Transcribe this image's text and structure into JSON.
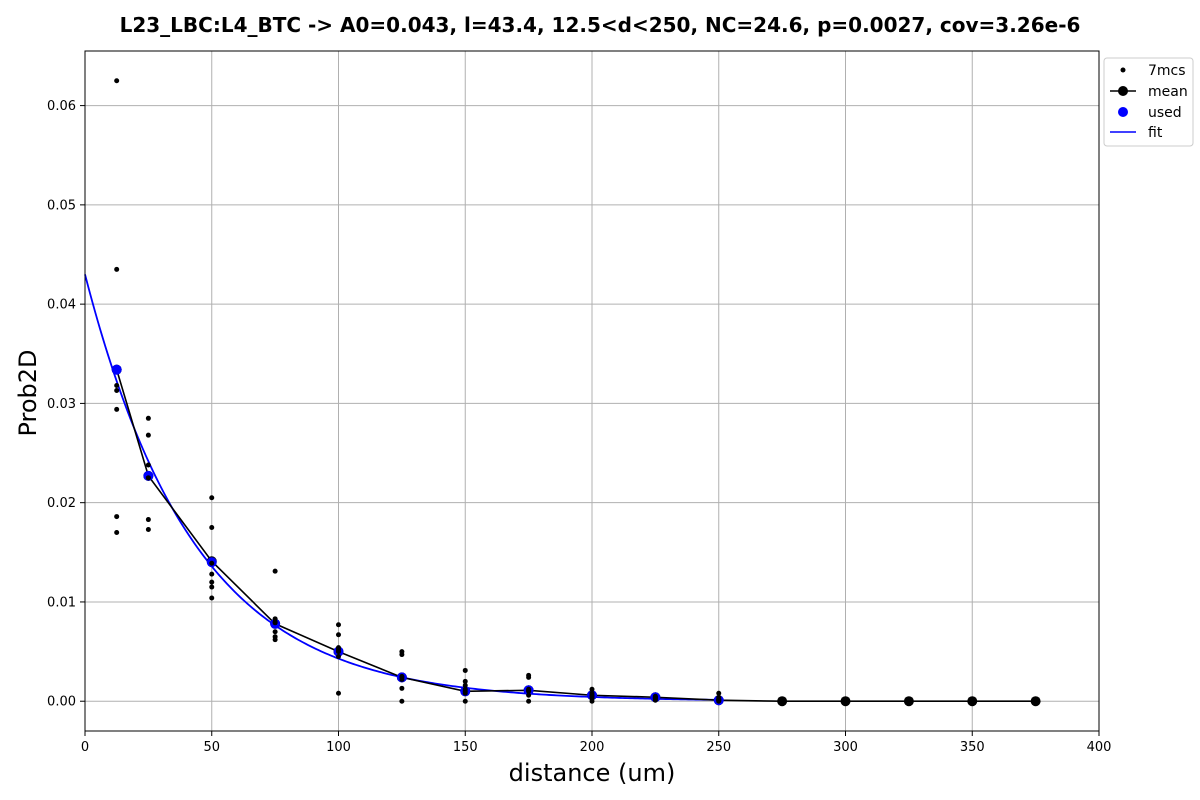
{
  "chart_data": {
    "type": "scatter",
    "title": "L23_LBC:L4_BTC -> A0=0.043, l=43.4, 12.5<d<250, NC=24.6, p=0.0027, cov=3.26e-6",
    "xlabel": "distance (um)",
    "ylabel": "Prob2D",
    "xlim": [
      0,
      400
    ],
    "ylim": [
      -0.003,
      0.0655
    ],
    "xticks": [
      0,
      50,
      100,
      150,
      200,
      250,
      300,
      350,
      400
    ],
    "xtick_labels": [
      "0",
      "50",
      "100",
      "150",
      "200",
      "250",
      "300",
      "350",
      "400"
    ],
    "yticks": [
      0.0,
      0.01,
      0.02,
      0.03,
      0.04,
      0.05,
      0.06
    ],
    "ytick_labels": [
      "0.00",
      "0.01",
      "0.02",
      "0.03",
      "0.04",
      "0.05",
      "0.06"
    ],
    "grid": true,
    "legend_position": "upper-right-outside",
    "colors": {
      "mcs": "#000000",
      "mean": "#000000",
      "used": "#0000ff",
      "fit": "#0000ff",
      "grid": "#b0b0b0"
    },
    "series": [
      {
        "name": "7mcs",
        "kind": "points",
        "x": [
          12.5,
          12.5,
          12.5,
          12.5,
          12.5,
          12.5,
          12.5,
          25,
          25,
          25,
          25,
          25,
          25,
          25,
          50,
          50,
          50,
          50,
          50,
          50,
          50,
          75,
          75,
          75,
          75,
          75,
          75,
          75,
          100,
          100,
          100,
          100,
          100,
          100,
          100,
          125,
          125,
          125,
          125,
          125,
          125,
          125,
          150,
          150,
          150,
          150,
          150,
          150,
          150,
          175,
          175,
          175,
          175,
          175,
          175,
          175,
          200,
          200,
          200,
          200,
          200,
          200,
          200,
          225,
          225,
          225,
          225,
          225,
          225,
          225,
          250,
          250,
          250,
          250,
          250,
          250,
          250
        ],
        "y": [
          0.0625,
          0.0435,
          0.0318,
          0.0313,
          0.0294,
          0.0186,
          0.017,
          0.0285,
          0.0268,
          0.0238,
          0.0225,
          0.0183,
          0.0173,
          0.0225,
          0.0205,
          0.0175,
          0.0128,
          0.012,
          0.0115,
          0.0104,
          0.0139,
          0.0131,
          0.0083,
          0.007,
          0.0065,
          0.0062,
          0.0079,
          0.008,
          0.0077,
          0.0067,
          0.0054,
          0.005,
          0.0045,
          0.0008,
          0.0052,
          0.005,
          0.0047,
          0.0025,
          0.0022,
          0.0013,
          0.0,
          0.0024,
          0.0031,
          0.002,
          0.0016,
          0.0008,
          0.0,
          0.001,
          0.0012,
          0.0026,
          0.0024,
          0.0012,
          0.001,
          0.0006,
          0.0,
          0.0011,
          0.0012,
          0.0008,
          0.0005,
          0.0003,
          0.0,
          0.0006,
          0.0005,
          0.0005,
          0.0004,
          0.0003,
          0.0002,
          0.0001,
          0.0003,
          0.0004,
          0.0008,
          0.0004,
          0.0002,
          0.0001,
          0.0,
          0.0001,
          0.0002
        ]
      },
      {
        "name": "mean",
        "kind": "line-markers",
        "x": [
          12.5,
          25,
          50,
          75,
          100,
          125,
          150,
          175,
          200,
          225,
          250,
          275,
          300,
          325,
          350,
          375
        ],
        "y": [
          0.0334,
          0.0227,
          0.0141,
          0.0078,
          0.005,
          0.0024,
          0.001,
          0.0011,
          0.0006,
          0.0004,
          0.0001,
          0.0,
          0.0,
          0.0,
          0.0,
          0.0
        ]
      },
      {
        "name": "used",
        "kind": "points-large",
        "x": [
          12.5,
          25,
          50,
          75,
          100,
          125,
          150,
          175,
          200,
          225,
          250
        ],
        "y": [
          0.0334,
          0.0227,
          0.014,
          0.0078,
          0.005,
          0.0024,
          0.001,
          0.0011,
          0.0006,
          0.0004,
          0.0001
        ]
      },
      {
        "name": "fit",
        "kind": "curve",
        "A0": 0.043,
        "l": 43.4,
        "x_range": [
          0,
          250
        ]
      }
    ]
  }
}
